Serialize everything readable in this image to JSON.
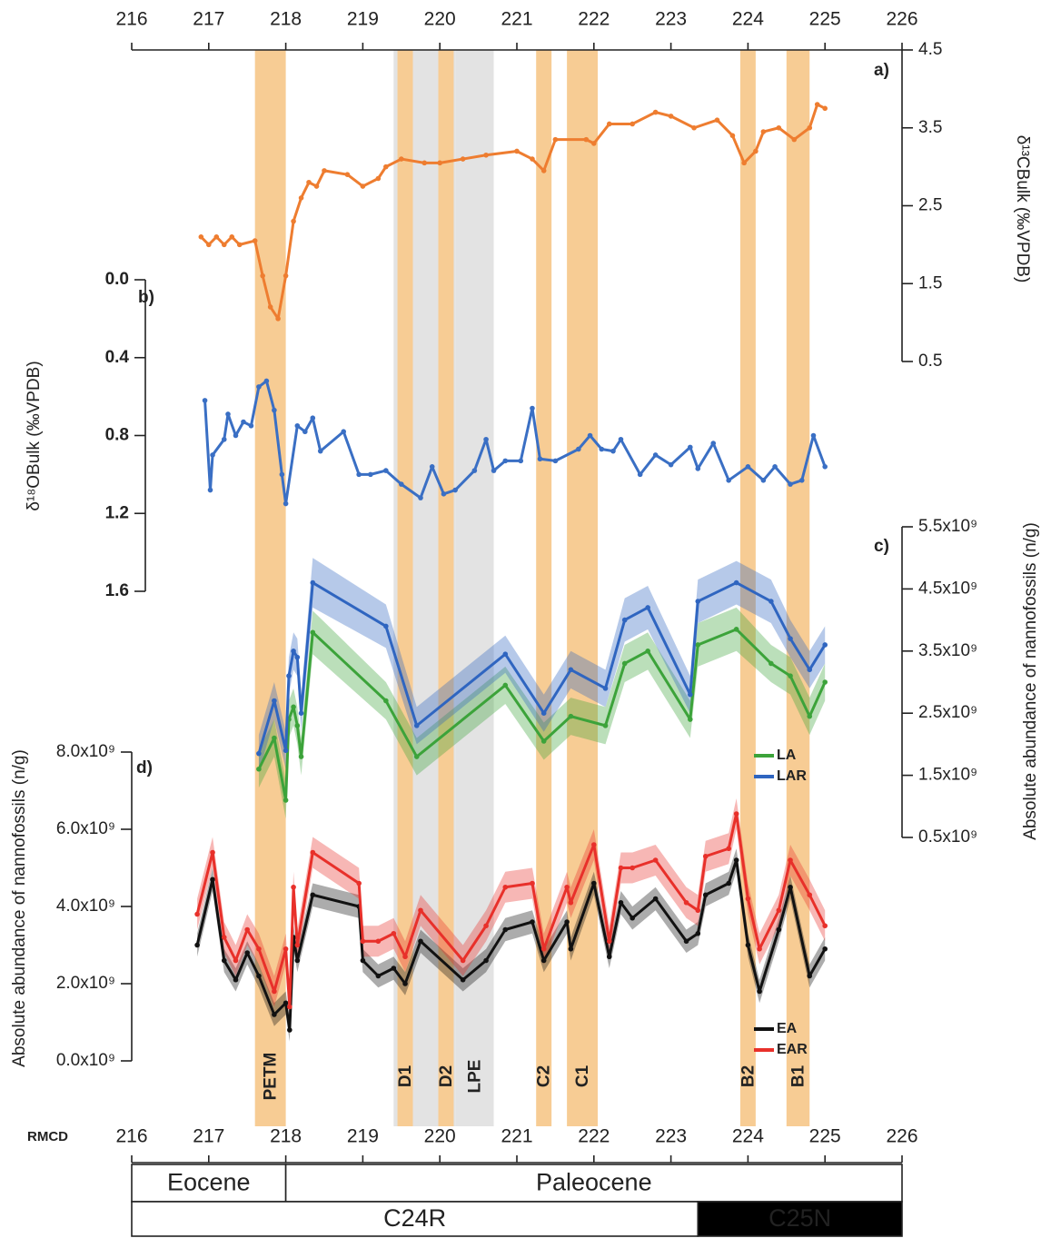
{
  "bands": [
    {
      "from": 219.4,
      "to": 220.2,
      "color": "#e3e3e3"
    },
    {
      "from": 220.2,
      "to": 220.7,
      "color": "#e3e3e3",
      "label": "LPE"
    },
    {
      "from": 217.6,
      "to": 218.0,
      "color": "#f7cc94",
      "label": "PETM"
    },
    {
      "from": 219.45,
      "to": 219.65,
      "color": "#f7cc94",
      "label": "D1"
    },
    {
      "from": 219.98,
      "to": 220.18,
      "color": "#f7cc94",
      "label": "D2"
    },
    {
      "from": 221.25,
      "to": 221.45,
      "color": "#f7cc94",
      "label": "C2"
    },
    {
      "from": 221.65,
      "to": 222.05,
      "color": "#f7cc94",
      "label": "C1"
    },
    {
      "from": 223.9,
      "to": 224.1,
      "color": "#f7cc94",
      "label": "B2"
    },
    {
      "from": 224.5,
      "to": 224.8,
      "color": "#f7cc94",
      "label": "B1"
    }
  ],
  "epochs": [
    {
      "label": "Eocene",
      "from": 216,
      "to": 218,
      "color": "#ffffff"
    },
    {
      "label": "Paleocene",
      "from": 218,
      "to": 226,
      "color": "#ffffff"
    }
  ],
  "chrons": [
    {
      "label": "C24R",
      "from": 216,
      "to": 223.35,
      "color": "#ffffff"
    },
    {
      "label": "C25N",
      "from": 223.35,
      "to": 226,
      "color": "#000000"
    }
  ],
  "chart_data": [
    {
      "type": "line",
      "panel": "a)",
      "ylabel": "δ¹³CBulk (‰VPDB)",
      "xlim": [
        216,
        226
      ],
      "xticks": [
        216,
        217,
        218,
        219,
        220,
        221,
        222,
        223,
        224,
        225,
        226
      ],
      "ylim": [
        0.5,
        4.5
      ],
      "yticks": [
        0.5,
        1.5,
        2.5,
        3.5,
        4.5
      ],
      "y_axis_side": "right",
      "x": [
        216.9,
        217.0,
        217.1,
        217.2,
        217.3,
        217.4,
        217.6,
        217.7,
        217.8,
        217.9,
        218.0,
        218.1,
        218.2,
        218.3,
        218.4,
        218.5,
        218.8,
        219.0,
        219.2,
        219.3,
        219.5,
        219.8,
        220.0,
        220.3,
        220.6,
        221.0,
        221.2,
        221.35,
        221.5,
        221.9,
        222.0,
        222.2,
        222.5,
        222.8,
        223.0,
        223.3,
        223.6,
        223.8,
        223.95,
        224.1,
        224.2,
        224.4,
        224.6,
        224.8,
        224.9,
        225.0
      ],
      "series": [
        {
          "color": "#ee7d30",
          "values": [
            2.1,
            2.0,
            2.1,
            2.0,
            2.1,
            2.0,
            2.05,
            1.6,
            1.2,
            1.05,
            1.6,
            2.3,
            2.6,
            2.8,
            2.75,
            2.95,
            2.9,
            2.75,
            2.85,
            3.0,
            3.1,
            3.05,
            3.05,
            3.1,
            3.15,
            3.2,
            3.1,
            2.95,
            3.35,
            3.35,
            3.3,
            3.55,
            3.55,
            3.7,
            3.65,
            3.5,
            3.6,
            3.4,
            3.05,
            3.2,
            3.45,
            3.5,
            3.35,
            3.5,
            3.8,
            3.75
          ]
        }
      ]
    },
    {
      "type": "line",
      "panel": "b)",
      "ylabel": "δ¹⁸OBulk (‰VPDB)",
      "xlim": [
        216,
        226
      ],
      "ylim": [
        1.6,
        0
      ],
      "yticks": [
        {
          "value": 0,
          "label": "0.0"
        },
        0.4,
        0.8,
        1.2,
        1.6
      ],
      "y_axis_side": "left",
      "x": [
        216.95,
        217.02,
        217.05,
        217.2,
        217.25,
        217.35,
        217.45,
        217.55,
        217.65,
        217.75,
        217.85,
        217.95,
        218.0,
        218.15,
        218.25,
        218.35,
        218.45,
        218.75,
        218.95,
        219.1,
        219.3,
        219.5,
        219.75,
        219.9,
        220.05,
        220.2,
        220.45,
        220.6,
        220.7,
        220.85,
        221.05,
        221.2,
        221.3,
        221.5,
        221.8,
        221.95,
        222.1,
        222.25,
        222.35,
        222.6,
        222.8,
        223.0,
        223.25,
        223.35,
        223.55,
        223.75,
        224.0,
        224.2,
        224.35,
        224.55,
        224.7,
        224.85,
        225.0
      ],
      "series": [
        {
          "color": "#3a6fc4",
          "values": [
            0.62,
            1.08,
            0.9,
            0.82,
            0.69,
            0.8,
            0.73,
            0.75,
            0.55,
            0.52,
            0.67,
            1.0,
            1.15,
            0.75,
            0.78,
            0.71,
            0.88,
            0.78,
            1.0,
            1.0,
            0.98,
            1.05,
            1.12,
            0.96,
            1.1,
            1.08,
            0.98,
            0.82,
            0.98,
            0.93,
            0.93,
            0.66,
            0.92,
            0.93,
            0.87,
            0.8,
            0.87,
            0.88,
            0.82,
            1.0,
            0.9,
            0.95,
            0.86,
            0.97,
            0.84,
            1.03,
            0.96,
            1.03,
            0.96,
            1.05,
            1.03,
            0.8,
            0.96
          ]
        }
      ]
    },
    {
      "type": "line",
      "panel": "c)",
      "ylabel": "Absolute abundance of nannofossils (n/g)",
      "xlim": [
        216,
        226
      ],
      "ylim": [
        500000000.0,
        5500000000.0
      ],
      "y_axis_side": "right",
      "yticks": [
        {
          "value": 500000000.0,
          "label": "0.5x10⁹"
        },
        {
          "value": 1500000000.0,
          "label": "1.5x10⁹"
        },
        {
          "value": 2500000000.0,
          "label": "2.5x10⁹"
        },
        {
          "value": 3500000000.0,
          "label": "3.5x10⁹"
        },
        {
          "value": 4500000000.0,
          "label": "4.5x10⁹"
        },
        {
          "value": 5500000000.0,
          "label": "5.5x10⁹"
        }
      ],
      "x": [
        217.65,
        217.85,
        218.0,
        218.04,
        218.1,
        218.15,
        218.2,
        218.35,
        219.3,
        219.7,
        220.85,
        221.35,
        221.7,
        222.15,
        222.4,
        222.7,
        223.25,
        223.35,
        223.85,
        224.3,
        224.55,
        224.8,
        225.0
      ],
      "series": [
        {
          "name": "LA",
          "color": "#3ca33a",
          "values": [
            1600000000.0,
            2100000000.0,
            1100000000.0,
            2400000000.0,
            2600000000.0,
            2300000000.0,
            1800000000.0,
            3800000000.0,
            2700000000.0,
            1800000000.0,
            2950000000.0,
            2050000000.0,
            2450000000.0,
            2300000000.0,
            3300000000.0,
            3500000000.0,
            2400000000.0,
            3600000000.0,
            3850000000.0,
            3300000000.0,
            3100000000.0,
            2450000000.0,
            3000000000.0
          ],
          "error": [
            300000000.0,
            300000000.0,
            300000000.0,
            300000000.0,
            300000000.0,
            300000000.0,
            300000000.0,
            350000000.0,
            300000000.0,
            300000000.0,
            300000000.0,
            300000000.0,
            300000000.0,
            300000000.0,
            300000000.0,
            300000000.0,
            300000000.0,
            350000000.0,
            350000000.0,
            300000000.0,
            300000000.0,
            300000000.0,
            300000000.0
          ]
        },
        {
          "name": "LAR",
          "color": "#2f65c0",
          "values": [
            1850000000.0,
            2700000000.0,
            1900000000.0,
            3100000000.0,
            3500000000.0,
            3400000000.0,
            2500000000.0,
            4600000000.0,
            3900000000.0,
            2300000000.0,
            3450000000.0,
            2500000000.0,
            3200000000.0,
            2900000000.0,
            4000000000.0,
            4200000000.0,
            2800000000.0,
            4300000000.0,
            4600000000.0,
            4300000000.0,
            3700000000.0,
            3200000000.0,
            3600000000.0
          ],
          "error": [
            300000000.0,
            300000000.0,
            300000000.0,
            300000000.0,
            300000000.0,
            300000000.0,
            300000000.0,
            400000000.0,
            350000000.0,
            300000000.0,
            300000000.0,
            300000000.0,
            300000000.0,
            300000000.0,
            350000000.0,
            350000000.0,
            300000000.0,
            350000000.0,
            350000000.0,
            350000000.0,
            300000000.0,
            300000000.0,
            300000000.0
          ]
        }
      ]
    },
    {
      "type": "line",
      "panel": "d)",
      "ylabel": "Absolute abundance of nannofossils (n/g)",
      "xlabel": "RMCD",
      "xlim": [
        216,
        226
      ],
      "xticks": [
        216,
        217,
        218,
        219,
        220,
        221,
        222,
        223,
        224,
        225,
        226
      ],
      "ylim": [
        0,
        8000000000.0
      ],
      "y_axis_side": "left",
      "yticks": [
        {
          "value": 0,
          "label": "0.0x10⁹"
        },
        {
          "value": 2000000000.0,
          "label": "2.0x10⁹"
        },
        {
          "value": 4000000000.0,
          "label": "4.0x10⁹"
        },
        {
          "value": 6000000000.0,
          "label": "6.0x10⁹"
        },
        {
          "value": 8000000000.0,
          "label": "8.0x10⁹"
        }
      ],
      "x": [
        216.85,
        217.05,
        217.2,
        217.35,
        217.5,
        217.65,
        217.85,
        218.0,
        218.05,
        218.1,
        218.15,
        218.35,
        218.95,
        219.0,
        219.2,
        219.4,
        219.55,
        219.75,
        220.3,
        220.6,
        220.85,
        221.2,
        221.35,
        221.65,
        221.7,
        222.0,
        222.2,
        222.35,
        222.5,
        222.8,
        223.2,
        223.35,
        223.45,
        223.75,
        223.85,
        224.0,
        224.15,
        224.4,
        224.55,
        224.8,
        225.0
      ],
      "series": [
        {
          "name": "EA",
          "color": "#111111",
          "values": [
            3000000000.0,
            4700000000.0,
            2600000000.0,
            2100000000.0,
            2800000000.0,
            2200000000.0,
            1200000000.0,
            1500000000.0,
            800000000.0,
            3200000000.0,
            2600000000.0,
            4300000000.0,
            4000000000.0,
            2600000000.0,
            2200000000.0,
            2400000000.0,
            2000000000.0,
            3100000000.0,
            2100000000.0,
            2600000000.0,
            3400000000.0,
            3600000000.0,
            2600000000.0,
            3600000000.0,
            2900000000.0,
            4600000000.0,
            2700000000.0,
            4100000000.0,
            3700000000.0,
            4200000000.0,
            3100000000.0,
            3300000000.0,
            4300000000.0,
            4600000000.0,
            5200000000.0,
            3000000000.0,
            1800000000.0,
            3400000000.0,
            4500000000.0,
            2200000000.0,
            2900000000.0
          ],
          "error": [
            300000000.0,
            300000000.0,
            300000000.0,
            300000000.0,
            300000000.0,
            300000000.0,
            300000000.0,
            300000000.0,
            300000000.0,
            300000000.0,
            300000000.0,
            300000000.0,
            300000000.0,
            300000000.0,
            300000000.0,
            300000000.0,
            300000000.0,
            300000000.0,
            300000000.0,
            300000000.0,
            300000000.0,
            300000000.0,
            300000000.0,
            300000000.0,
            300000000.0,
            300000000.0,
            300000000.0,
            300000000.0,
            300000000.0,
            300000000.0,
            300000000.0,
            300000000.0,
            300000000.0,
            300000000.0,
            300000000.0,
            300000000.0,
            300000000.0,
            300000000.0,
            300000000.0,
            300000000.0,
            300000000.0
          ]
        },
        {
          "name": "EAR",
          "color": "#e8302a",
          "values": [
            3800000000.0,
            5400000000.0,
            3200000000.0,
            2600000000.0,
            3400000000.0,
            2900000000.0,
            1800000000.0,
            2900000000.0,
            1400000000.0,
            4500000000.0,
            3000000000.0,
            5400000000.0,
            4600000000.0,
            3100000000.0,
            3100000000.0,
            3300000000.0,
            2700000000.0,
            3900000000.0,
            2600000000.0,
            3500000000.0,
            4500000000.0,
            4600000000.0,
            2900000000.0,
            4500000000.0,
            4100000000.0,
            5600000000.0,
            3100000000.0,
            5000000000.0,
            5000000000.0,
            5200000000.0,
            4100000000.0,
            3900000000.0,
            5300000000.0,
            5500000000.0,
            6400000000.0,
            4200000000.0,
            2900000000.0,
            3900000000.0,
            5200000000.0,
            4300000000.0,
            3500000000.0
          ],
          "error": [
            400000000.0,
            400000000.0,
            400000000.0,
            400000000.0,
            400000000.0,
            400000000.0,
            400000000.0,
            400000000.0,
            400000000.0,
            400000000.0,
            400000000.0,
            400000000.0,
            400000000.0,
            400000000.0,
            400000000.0,
            400000000.0,
            400000000.0,
            400000000.0,
            400000000.0,
            400000000.0,
            400000000.0,
            400000000.0,
            400000000.0,
            400000000.0,
            400000000.0,
            400000000.0,
            400000000.0,
            400000000.0,
            400000000.0,
            400000000.0,
            400000000.0,
            400000000.0,
            400000000.0,
            400000000.0,
            400000000.0,
            400000000.0,
            400000000.0,
            400000000.0,
            400000000.0,
            400000000.0,
            400000000.0
          ]
        }
      ]
    }
  ]
}
